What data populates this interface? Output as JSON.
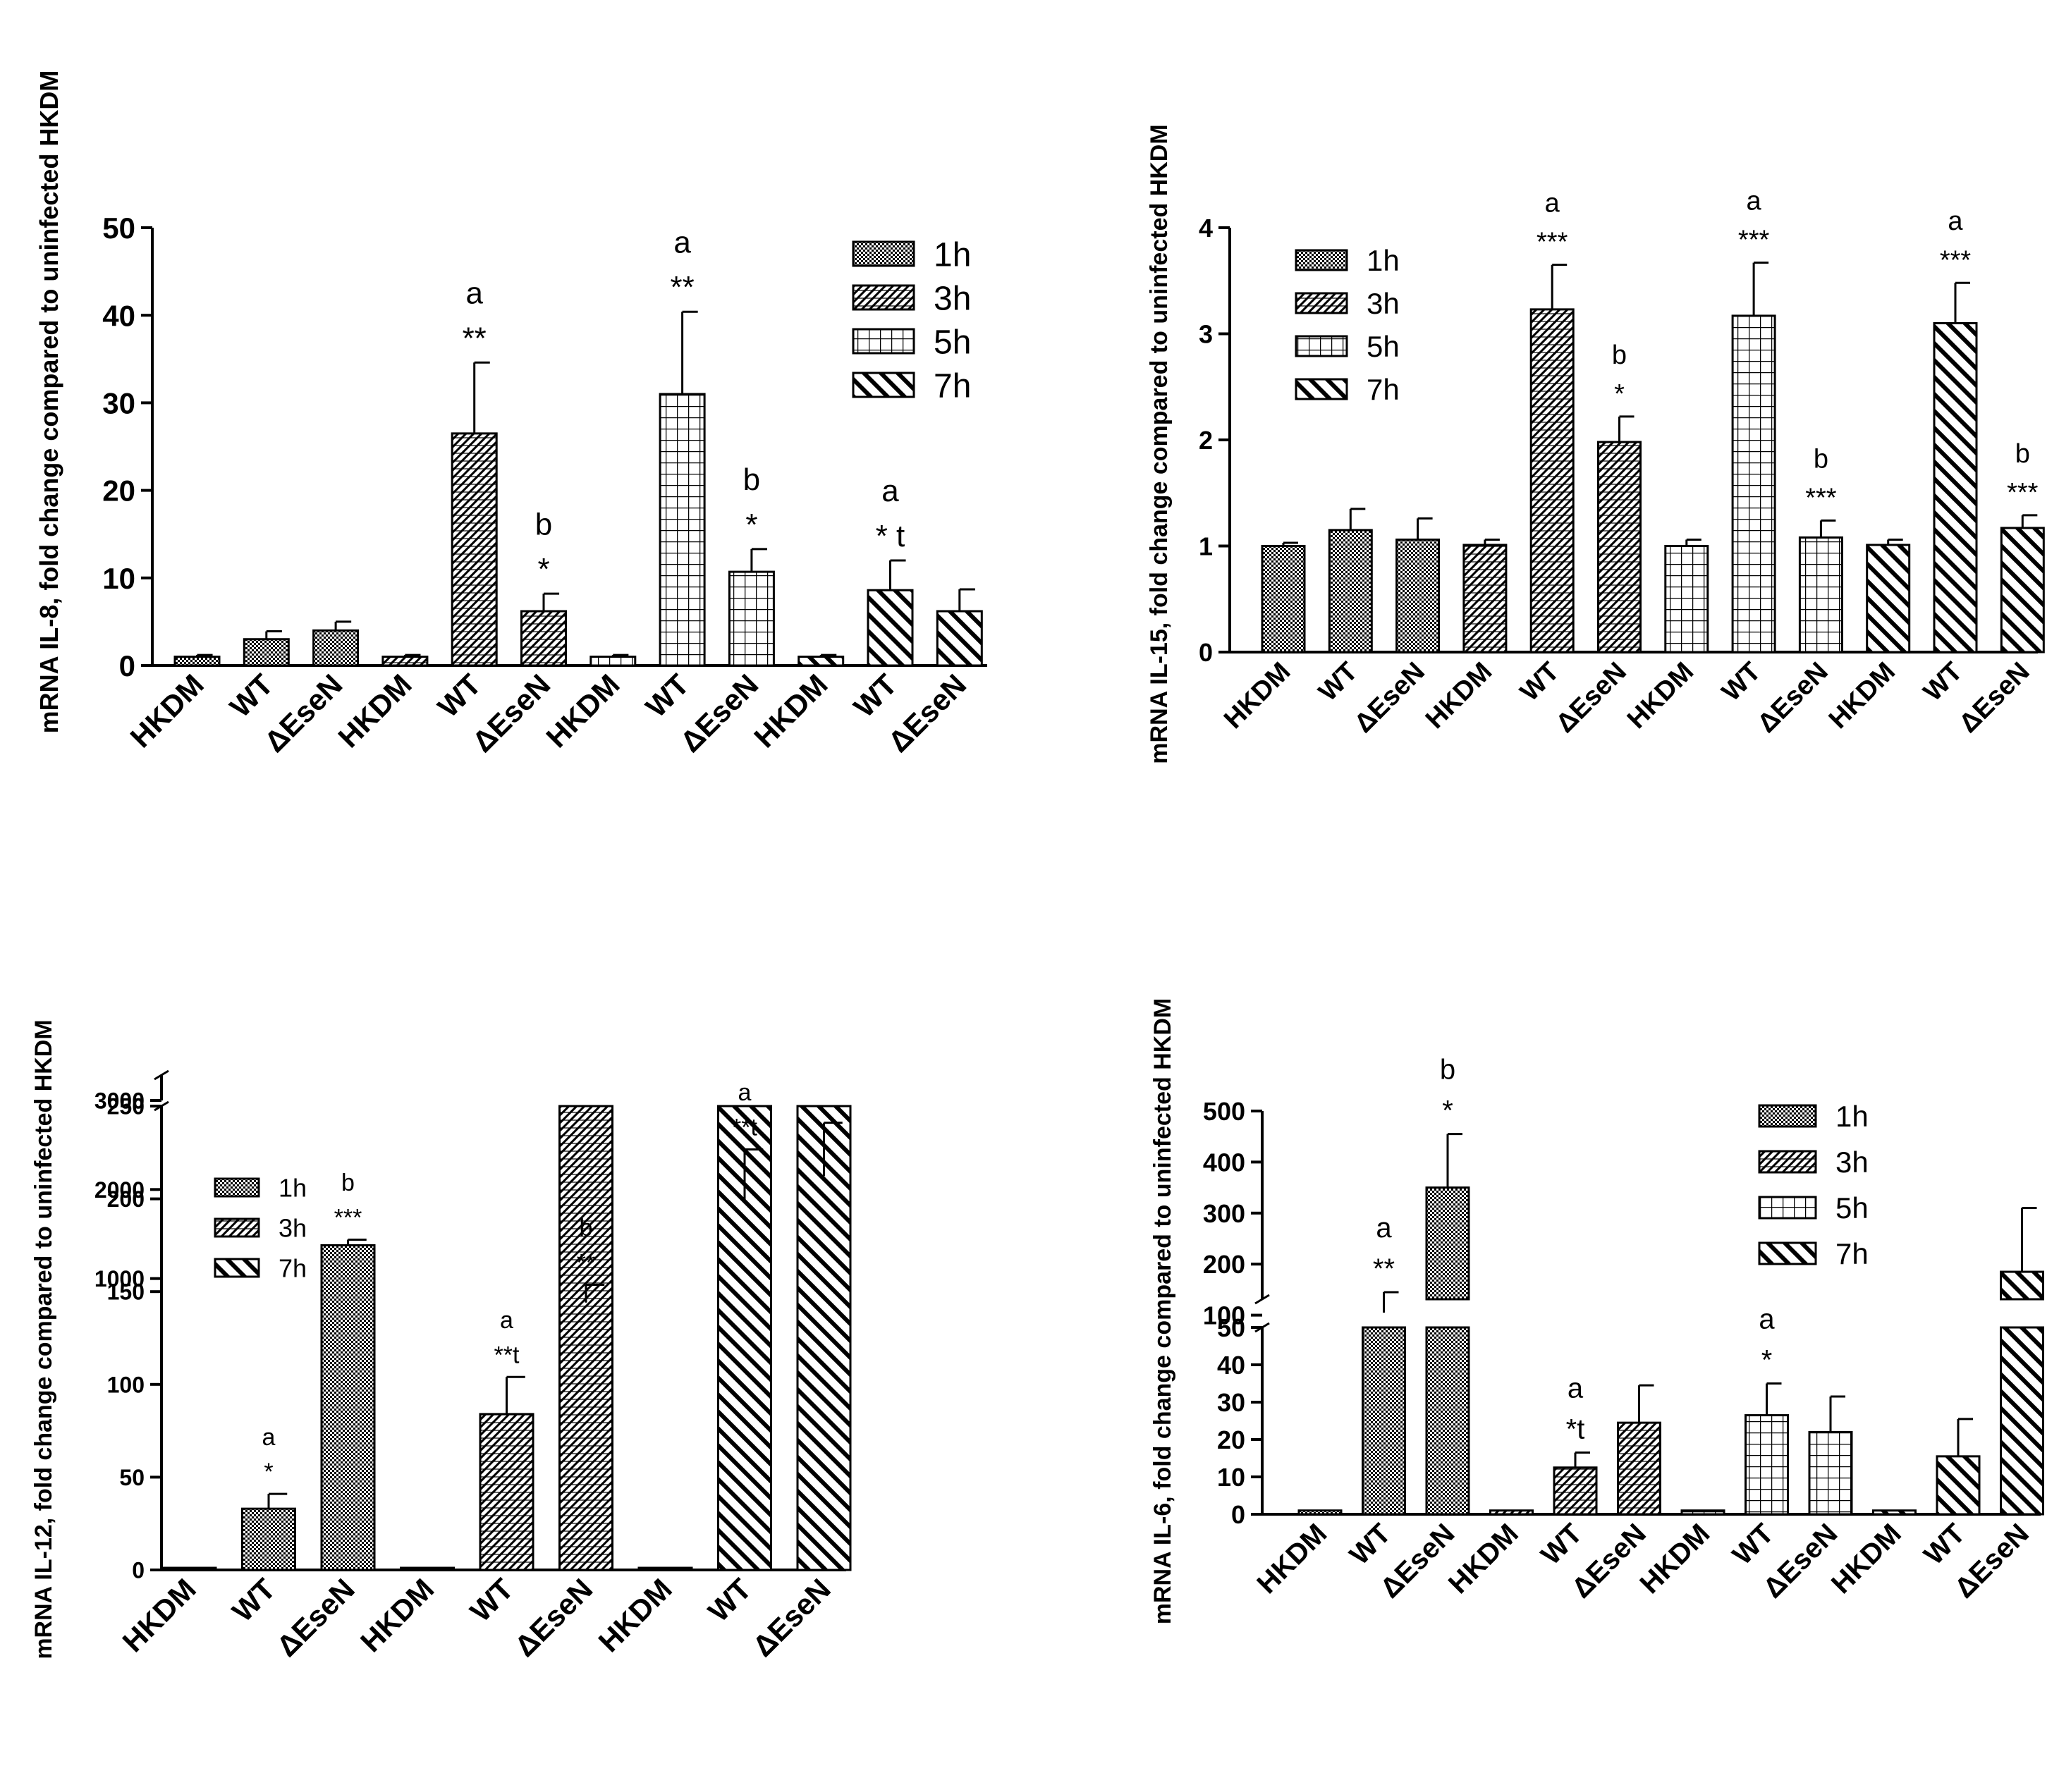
{
  "chart_data": [
    {
      "type": "bar",
      "ylabel": "mRNA IL-8, fold change compared to uninfected HKDM",
      "ylim": [
        0,
        50
      ],
      "yticks": [
        "0",
        "10",
        "20",
        "30",
        "40",
        "50"
      ],
      "legend": [
        "1h",
        "3h",
        "5h",
        "7h"
      ],
      "legend_position": "top-right",
      "categories": [
        "HKDM",
        "WT",
        "ΔEseN",
        "HKDM",
        "WT",
        "ΔEseN",
        "HKDM",
        "WT",
        "ΔEseN",
        "HKDM",
        "WT",
        "ΔEseN"
      ],
      "group": [
        0,
        0,
        0,
        1,
        1,
        1,
        2,
        2,
        2,
        3,
        3,
        3
      ],
      "values": [
        1,
        3,
        4,
        1,
        26.5,
        6.2,
        1,
        31,
        10.7,
        1,
        8.6,
        6.2
      ],
      "errors": [
        0.2,
        0.9,
        1.0,
        0.2,
        8.1,
        2.0,
        0.2,
        9.4,
        2.6,
        0.2,
        3.4,
        2.5
      ],
      "annotations": [
        {
          "bar": 4,
          "lines": [
            "a",
            "**"
          ]
        },
        {
          "bar": 5,
          "lines": [
            "b",
            "*"
          ]
        },
        {
          "bar": 7,
          "lines": [
            "a",
            "**"
          ]
        },
        {
          "bar": 8,
          "lines": [
            "b",
            "*"
          ]
        },
        {
          "bar": 10,
          "lines": [
            "a",
            "* t"
          ]
        }
      ]
    },
    {
      "type": "bar",
      "ylabel": "mRNA IL-15, fold change compared to uninfected HKDM",
      "ylim": [
        0,
        4
      ],
      "yticks": [
        "0",
        "1",
        "2",
        "3",
        "4"
      ],
      "legend": [
        "1h",
        "3h",
        "5h",
        "7h"
      ],
      "legend_position": "top-left",
      "categories": [
        "HKDM",
        "WT",
        "ΔEseN",
        "HKDM",
        "WT",
        "ΔEseN",
        "HKDM",
        "WT",
        "ΔEseN",
        "HKDM",
        "WT",
        "ΔEseN"
      ],
      "group": [
        0,
        0,
        0,
        1,
        1,
        1,
        2,
        2,
        2,
        3,
        3,
        3
      ],
      "values": [
        1,
        1.15,
        1.06,
        1.01,
        3.23,
        1.98,
        1,
        3.17,
        1.08,
        1.01,
        3.1,
        1.17
      ],
      "errors": [
        0.03,
        0.2,
        0.2,
        0.05,
        0.42,
        0.24,
        0.06,
        0.5,
        0.16,
        0.05,
        0.38,
        0.12
      ],
      "annotations": [
        {
          "bar": 4,
          "lines": [
            "a",
            "***"
          ]
        },
        {
          "bar": 5,
          "lines": [
            "b",
            "*"
          ]
        },
        {
          "bar": 7,
          "lines": [
            "a",
            "***"
          ]
        },
        {
          "bar": 8,
          "lines": [
            "b",
            "***"
          ]
        },
        {
          "bar": 10,
          "lines": [
            "a",
            "***"
          ]
        },
        {
          "bar": 11,
          "lines": [
            "b",
            "***"
          ]
        }
      ]
    },
    {
      "type": "bar",
      "ylabel": "mRNA IL-12, fold change compared to uninfected HKDM",
      "ylim": [
        0,
        3000
      ],
      "axis_break": [
        250,
        0
      ],
      "yticks_lower": [
        "0",
        "50",
        "100",
        "150",
        "200",
        "250"
      ],
      "yticks_upper": [
        "1000",
        "2000",
        "3000"
      ],
      "legend": [
        "1h",
        "3h",
        "7h"
      ],
      "legend_position": "top-left",
      "categories": [
        "HKDM",
        "WT",
        "ΔEseN",
        "HKDM",
        "WT",
        "ΔEseN",
        "HKDM",
        "WT",
        "ΔEseN"
      ],
      "group": [
        0,
        0,
        0,
        1,
        1,
        1,
        3,
        3,
        3
      ],
      "values": [
        1,
        33,
        175,
        1,
        84,
        730,
        1,
        1850,
        2150
      ],
      "errors": [
        0,
        8,
        3,
        0,
        20,
        200,
        0,
        600,
        600
      ],
      "annotations": [
        {
          "bar": 1,
          "lines": [
            "a",
            "*"
          ]
        },
        {
          "bar": 2,
          "lines": [
            "b",
            "***"
          ]
        },
        {
          "bar": 4,
          "lines": [
            "a",
            "**t"
          ]
        },
        {
          "bar": 5,
          "lines": [
            "b",
            "**"
          ]
        },
        {
          "bar": 7,
          "lines": [
            "a",
            "**t"
          ]
        }
      ]
    },
    {
      "type": "bar",
      "ylabel": "mRNA IL-6, fold change compared to uninfected HKDM",
      "ylim": [
        0,
        500
      ],
      "axis_break": [
        50,
        0
      ],
      "yticks_lower": [
        "0",
        "10",
        "20",
        "30",
        "40",
        "50"
      ],
      "yticks_upper": [
        "100",
        "200",
        "300",
        "400",
        "500"
      ],
      "legend": [
        "1h",
        "3h",
        "5h",
        "7h"
      ],
      "legend_position": "top-right",
      "categories": [
        "HKDM",
        "WT",
        "ΔEseN",
        "HKDM",
        "WT",
        "ΔEseN",
        "HKDM",
        "WT",
        "ΔEseN",
        "HKDM",
        "WT",
        "ΔEseN"
      ],
      "group": [
        0,
        0,
        0,
        1,
        1,
        1,
        2,
        2,
        2,
        3,
        3,
        3
      ],
      "values": [
        1,
        105,
        350,
        1,
        12.5,
        24.5,
        1,
        26.5,
        22,
        1,
        15.5,
        185
      ],
      "errors": [
        0,
        40,
        105,
        0,
        4,
        10,
        0,
        8.5,
        9.5,
        0,
        10,
        125
      ],
      "annotations": [
        {
          "bar": 1,
          "lines": [
            "a",
            "**"
          ]
        },
        {
          "bar": 2,
          "lines": [
            "b",
            "*"
          ]
        },
        {
          "bar": 4,
          "lines": [
            "a",
            "*t"
          ]
        },
        {
          "bar": 7,
          "lines": [
            "a",
            "*"
          ]
        }
      ]
    }
  ]
}
